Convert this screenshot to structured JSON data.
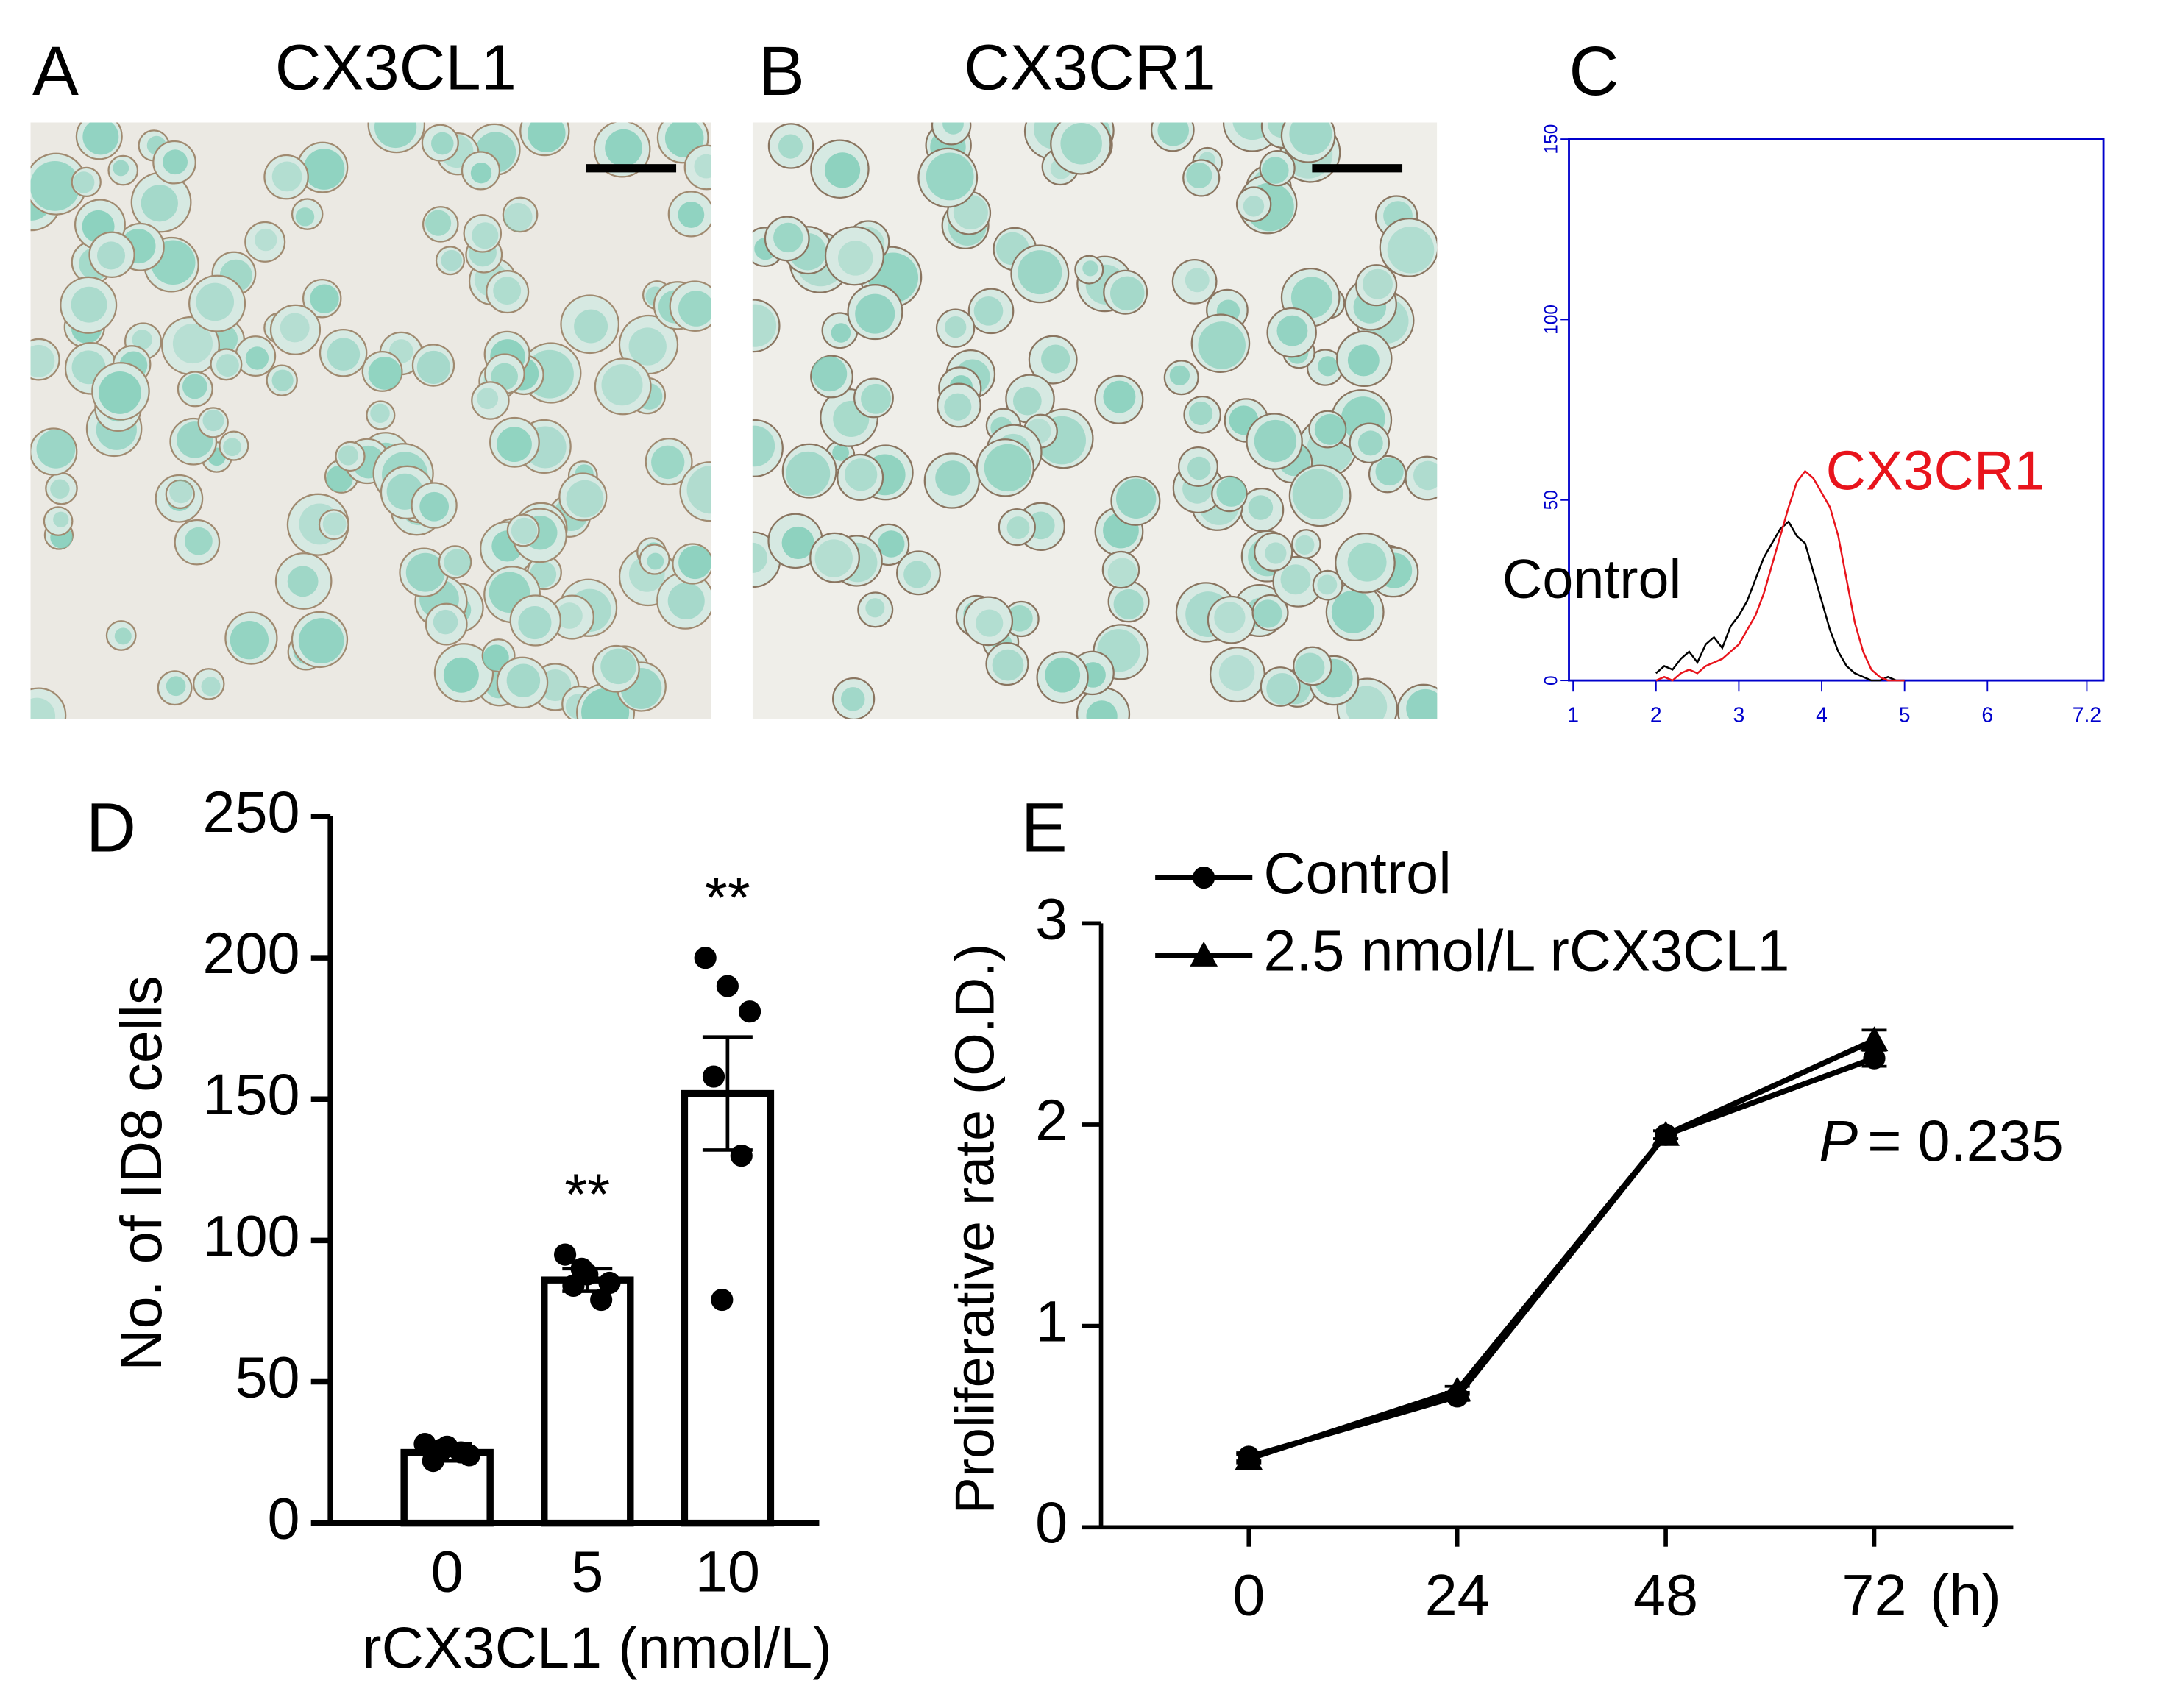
{
  "images": [
    {
      "panel": "A",
      "title": "CX3CL1"
    },
    {
      "panel": "B",
      "title": "CX3CR1"
    }
  ],
  "chart_data": [
    {
      "type": "flow-histogram",
      "panel": "C",
      "x": [
        2.0,
        2.1,
        2.2,
        2.3,
        2.4,
        2.5,
        2.6,
        2.7,
        2.8,
        2.9,
        3.0,
        3.1,
        3.2,
        3.3,
        3.4,
        3.5,
        3.6,
        3.7,
        3.8,
        3.9,
        4.0,
        4.1,
        4.2,
        4.3,
        4.4,
        4.5,
        4.6,
        4.7,
        4.8,
        4.9,
        5.0
      ],
      "series": [
        {
          "name": "Control",
          "color": "#000000",
          "values": [
            2,
            4,
            3,
            6,
            8,
            5,
            10,
            12,
            9,
            15,
            18,
            22,
            28,
            34,
            38,
            42,
            44,
            40,
            38,
            30,
            22,
            14,
            8,
            4,
            2,
            1,
            0,
            0,
            1,
            0,
            0
          ]
        },
        {
          "name": "CX3CR1",
          "color": "#e8141c",
          "values": [
            0,
            1,
            0,
            2,
            3,
            2,
            4,
            5,
            6,
            8,
            10,
            14,
            18,
            24,
            32,
            40,
            48,
            55,
            58,
            56,
            52,
            48,
            40,
            28,
            16,
            8,
            3,
            1,
            0,
            0,
            0
          ]
        }
      ],
      "xlim": [
        1,
        7.2
      ],
      "xticks": [
        1,
        2,
        3,
        4,
        5,
        6,
        7.2
      ],
      "ylim": [
        0,
        150
      ],
      "yticks": [
        0,
        50,
        100,
        150
      ],
      "axis_color": "#0000cc"
    },
    {
      "type": "bar",
      "panel": "D",
      "categories": [
        "0",
        "5",
        "10"
      ],
      "values": [
        25,
        86,
        152
      ],
      "errors": [
        3,
        4,
        20
      ],
      "points": [
        [
          28,
          27,
          24,
          22,
          25,
          26
        ],
        [
          95,
          88,
          85,
          84,
          79,
          90
        ],
        [
          200,
          190,
          181,
          158,
          130,
          79
        ]
      ],
      "significance": [
        null,
        "**",
        "**"
      ],
      "x_label": "rCX3CL1 (nmol/L)",
      "y_label": "No. of ID8 cells",
      "ylim": [
        0,
        250
      ],
      "yticks": [
        0,
        50,
        100,
        150,
        200,
        250
      ],
      "color": "#000000"
    },
    {
      "type": "line",
      "panel": "E",
      "x": [
        0,
        24,
        48,
        72
      ],
      "x_unit": "(h)",
      "series": [
        {
          "name": "Control",
          "marker": "circle",
          "color": "#000000",
          "values": [
            0.35,
            0.65,
            1.95,
            2.33
          ],
          "errors": [
            0.02,
            0.02,
            0.02,
            0.04
          ]
        },
        {
          "name": "2.5 nmol/L rCX3CL1",
          "marker": "triangle",
          "color": "#000000",
          "values": [
            0.34,
            0.68,
            1.95,
            2.42
          ],
          "errors": [
            0.02,
            0.02,
            0.02,
            0.05
          ]
        }
      ],
      "p_symbol": "P",
      "p_text": "= 0.235",
      "y_label": "Proliferative rate (O.D.)",
      "xlim": [
        -17,
        88
      ],
      "xticks": [
        0,
        24,
        48,
        72
      ],
      "ylim": [
        0,
        3
      ],
      "yticks": [
        0,
        1,
        2,
        3
      ]
    }
  ]
}
